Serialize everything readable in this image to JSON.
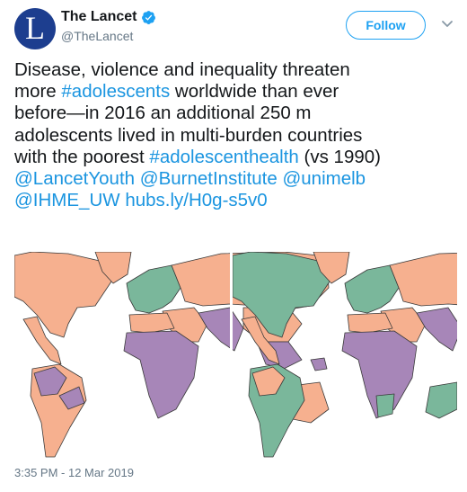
{
  "header": {
    "avatar_letter": "L",
    "display_name": "The Lancet",
    "handle": "@TheLancet",
    "follow_label": "Follow"
  },
  "tweet": {
    "line1": "Disease, violence and inequality threaten",
    "line2_pre": "more ",
    "line2_tag": "#adolescents",
    "line2_post": " worldwide than ever",
    "line3": "before—in 2016 an additional 250 m",
    "line4": "adolescents lived in multi-burden countries",
    "line5_pre": "with the poorest ",
    "line5_tag": "#adolescenthealth",
    "line5_post": " (vs 1990)",
    "mention1": "@LancetYouth",
    "mention2": "@BurnetInstitute",
    "mention3": "@unimelb",
    "mention4": "@IHME_UW",
    "link": "hubs.ly/H0g-s5v0",
    "timestamp": "3:35 PM - 12 Mar 2019"
  },
  "colors": {
    "brand": "#1d3e8f",
    "link": "#1b95e0",
    "map_peach": "#f6b08f",
    "map_purple": "#a786b8",
    "map_green": "#7ab79b"
  },
  "icons": [
    "verified-badge-icon",
    "chevron-down-icon"
  ]
}
